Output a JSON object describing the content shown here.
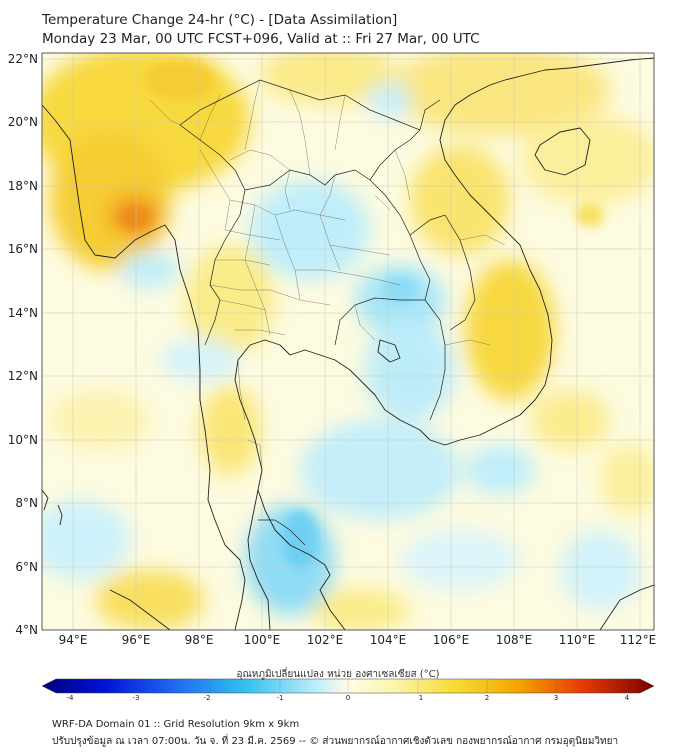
{
  "header": {
    "title_line1": "Temperature Change 24-hr (°C) - [Data Assimilation]",
    "title_line2": "Monday 23 Mar, 00 UTC FCST+096, Valid at :: Fri 27 Mar, 00 UTC"
  },
  "map": {
    "lat_labels": [
      "22°N",
      "20°N",
      "18°N",
      "16°N",
      "14°N",
      "12°N",
      "10°N",
      "8°N",
      "6°N",
      "4°N"
    ],
    "lon_labels": [
      "94°E",
      "96°E",
      "98°E",
      "100°E",
      "102°E",
      "104°E",
      "106°E",
      "108°E",
      "110°E",
      "112°E"
    ],
    "lat_range": [
      4,
      22.2
    ],
    "lon_range": [
      93,
      112.5
    ]
  },
  "colorbar": {
    "title": "อุณหภูมิเปลี่ยนแปลง หน่วย องศาเซลเซียส (°C)",
    "ticks": [
      "-4",
      "-3",
      "-2",
      "-1",
      "0",
      "1",
      "2",
      "3",
      "4"
    ],
    "range": [
      -4,
      4
    ]
  },
  "footer": {
    "line1": "WRF-DA Domain 01 :: Grid Resolution 9km x 9km",
    "line2": "ปรับปรุงข้อมูล ณ เวลา 07:00น. วัน จ. ที่ 23 มี.ค. 2569 -- © ส่วนพยากรณ์อากาศเชิงตัวเลข กองพยากรณ์อากาศ กรมอุตุนิยมวิทยา"
  }
}
